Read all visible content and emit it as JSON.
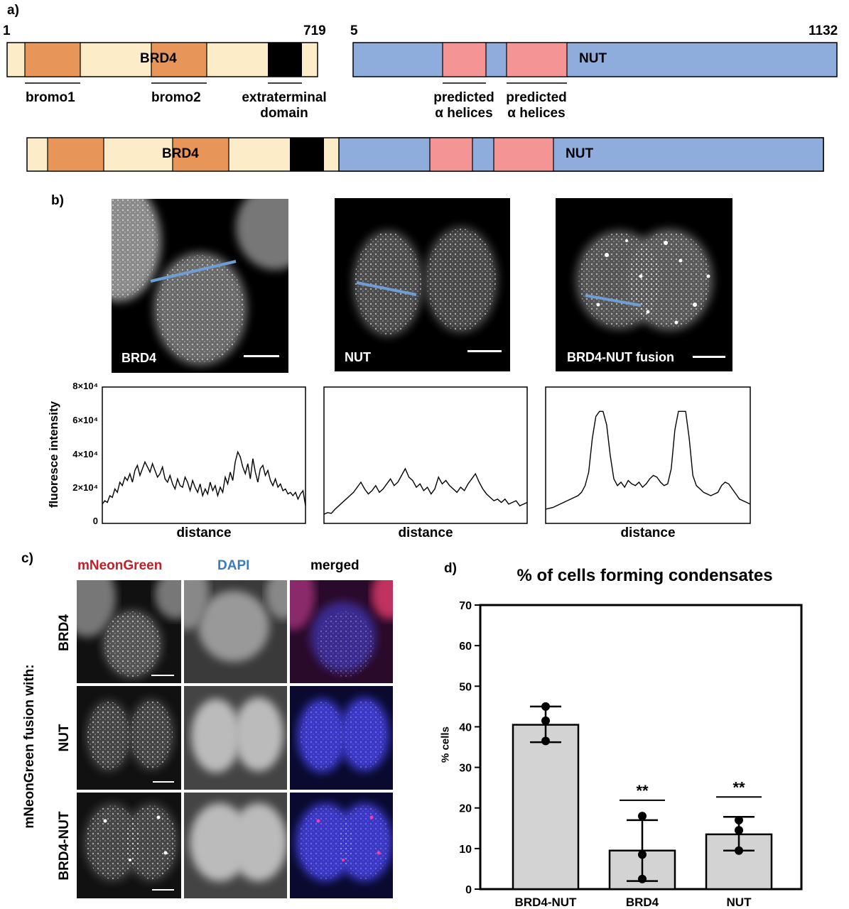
{
  "panel_labels": {
    "a": "a)",
    "b": "b)",
    "c": "c)",
    "d": "d)"
  },
  "domain_diagram": {
    "brd4": {
      "start": "1",
      "end": "719",
      "name": "BRD4"
    },
    "nut": {
      "start": "5",
      "end": "1132",
      "name": "NUT"
    },
    "annotations": {
      "bromo1": "bromo1",
      "bromo2": "bromo2",
      "et_line1": "extraterminal",
      "et_line2": "domain",
      "helix_a_line1": "predicted",
      "helix_a_line2": "α helices",
      "helix_b_line1": "predicted",
      "helix_b_line2": "α helices"
    },
    "fusion": {
      "brd4_name": "BRD4",
      "nut_name": "NUT"
    },
    "colors": {
      "brd4_body": "#fdecc8",
      "bromo": "#e8955a",
      "et": "#000000",
      "nut_body": "#8eacdc",
      "helix": "#f59494"
    }
  },
  "panel_b": {
    "images": [
      {
        "caption": "BRD4"
      },
      {
        "caption": "NUT"
      },
      {
        "caption": "BRD4-NUT fusion"
      }
    ],
    "profiles": {
      "ylabel": "fluoresce intensity",
      "xlabel": "distance",
      "yticks": [
        "8×10⁴",
        "6×10⁴",
        "4×10⁴",
        "2×10⁴",
        "0"
      ]
    },
    "line_color": "#6e9fd4"
  },
  "panel_c": {
    "column_headers": {
      "mneongreen": "mNeonGreen",
      "dapi": "DAPI",
      "merged": "merged"
    },
    "row_labels": [
      "BRD4",
      "NUT",
      "BRD4-NUT"
    ],
    "side_label": "mNeonGreen fusion with:",
    "colors": {
      "mneongreen": "#c0202a",
      "dapi": "#3a7cc0"
    }
  },
  "chart_data": [
    {
      "type": "line",
      "title": "",
      "xlabel": "distance",
      "ylabel": "fluoresce intensity",
      "ylim": [
        0,
        80000
      ],
      "series": [
        {
          "name": "BRD4",
          "values": [
            11000,
            13000,
            12000,
            16000,
            15000,
            20000,
            18000,
            24000,
            22000,
            27000,
            25000,
            29000,
            24000,
            31000,
            34000,
            28000,
            32000,
            36000,
            33000,
            30000,
            35000,
            31000,
            27000,
            29000,
            33000,
            26000,
            24000,
            28000,
            23000,
            20000,
            26000,
            22000,
            21000,
            27000,
            24000,
            19000,
            25000,
            21000,
            18000,
            23000,
            16000,
            20000,
            17000,
            24000,
            19000,
            22000,
            16000,
            21000,
            18000,
            27000,
            23000,
            30000,
            25000,
            36000,
            42000,
            39000,
            33000,
            29000,
            35000,
            26000,
            38000,
            30000,
            24000,
            32000,
            34000,
            28000,
            31000,
            25000,
            22000,
            26000,
            21000,
            23000,
            19000,
            20000,
            17000,
            18000,
            16000,
            18000,
            14000,
            17000,
            19000,
            10000
          ]
        },
        {
          "name": "NUT",
          "values": [
            5000,
            6000,
            5500,
            8000,
            10000,
            12000,
            14000,
            16000,
            18000,
            21000,
            24000,
            20000,
            17000,
            19000,
            22000,
            18000,
            20000,
            23000,
            26000,
            22000,
            24000,
            28000,
            32000,
            27000,
            25000,
            21000,
            23000,
            19000,
            21000,
            17000,
            20000,
            27000,
            23000,
            25000,
            22000,
            20000,
            18000,
            21000,
            19000,
            23000,
            26000,
            29000,
            24000,
            20000,
            17000,
            15000,
            13000,
            14000,
            12000,
            14000,
            11000,
            12000,
            13000,
            10000,
            11000,
            12000
          ]
        },
        {
          "name": "BRD4-NUT fusion",
          "values": [
            8000,
            8500,
            9000,
            10000,
            11000,
            12000,
            13000,
            14000,
            15000,
            16000,
            18000,
            22000,
            30000,
            50000,
            63000,
            66000,
            66000,
            58000,
            40000,
            26000,
            22000,
            24000,
            21000,
            25000,
            23000,
            22000,
            24000,
            21000,
            23000,
            26000,
            28000,
            27000,
            24000,
            22000,
            23000,
            32000,
            55000,
            66000,
            66000,
            66000,
            50000,
            28000,
            22000,
            20000,
            18000,
            17000,
            16000,
            17000,
            18000,
            22000,
            24000,
            23000,
            20000,
            17000,
            14000,
            13000,
            12000,
            11000
          ]
        }
      ]
    },
    {
      "type": "bar",
      "title": "% of cells forming condensates",
      "xlabel": "",
      "ylabel": "% cells",
      "ylim": [
        0,
        70
      ],
      "yticks": [
        "0",
        "10",
        "20",
        "30",
        "40",
        "50",
        "60",
        "70"
      ],
      "categories": [
        "BRD4-NUT",
        "BRD4",
        "NUT"
      ],
      "values": [
        40.5,
        9.5,
        13.5
      ],
      "error_high": [
        45,
        17,
        17.8
      ],
      "error_low": [
        36.2,
        2,
        9.5
      ],
      "points": [
        [
          45,
          41.5,
          36.5
        ],
        [
          18,
          8.5,
          2.5
        ],
        [
          17,
          14.5,
          9.5
        ]
      ],
      "significance": [
        "",
        "**",
        "**"
      ]
    }
  ]
}
